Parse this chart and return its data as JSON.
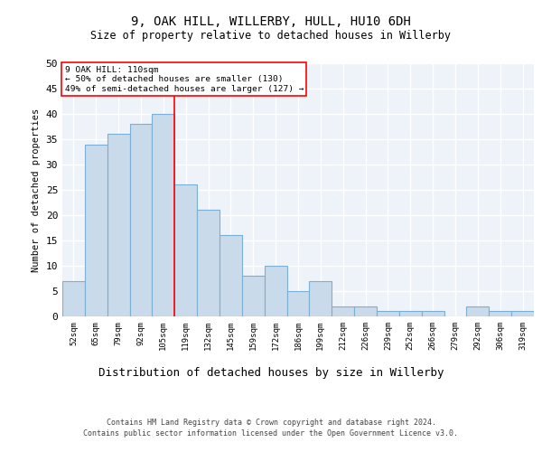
{
  "title1": "9, OAK HILL, WILLERBY, HULL, HU10 6DH",
  "title2": "Size of property relative to detached houses in Willerby",
  "xlabel": "Distribution of detached houses by size in Willerby",
  "ylabel": "Number of detached properties",
  "categories": [
    "52sqm",
    "65sqm",
    "79sqm",
    "92sqm",
    "105sqm",
    "119sqm",
    "132sqm",
    "145sqm",
    "159sqm",
    "172sqm",
    "186sqm",
    "199sqm",
    "212sqm",
    "226sqm",
    "239sqm",
    "252sqm",
    "266sqm",
    "279sqm",
    "292sqm",
    "306sqm",
    "319sqm"
  ],
  "values": [
    7,
    34,
    36,
    38,
    40,
    26,
    21,
    16,
    8,
    10,
    5,
    7,
    2,
    2,
    1,
    1,
    1,
    0,
    2,
    1,
    1
  ],
  "bar_color": "#c9daea",
  "bar_edge_color": "#7bafd4",
  "background_color": "#eef3f9",
  "grid_color": "#ffffff",
  "ylim": [
    0,
    50
  ],
  "yticks": [
    0,
    5,
    10,
    15,
    20,
    25,
    30,
    35,
    40,
    45,
    50
  ],
  "annotation_box_text1": "9 OAK HILL: 110sqm",
  "annotation_box_text2": "← 50% of detached houses are smaller (130)",
  "annotation_box_text3": "49% of semi-detached houses are larger (127) →",
  "redline_x": 4.5,
  "footer1": "Contains HM Land Registry data © Crown copyright and database right 2024.",
  "footer2": "Contains public sector information licensed under the Open Government Licence v3.0."
}
